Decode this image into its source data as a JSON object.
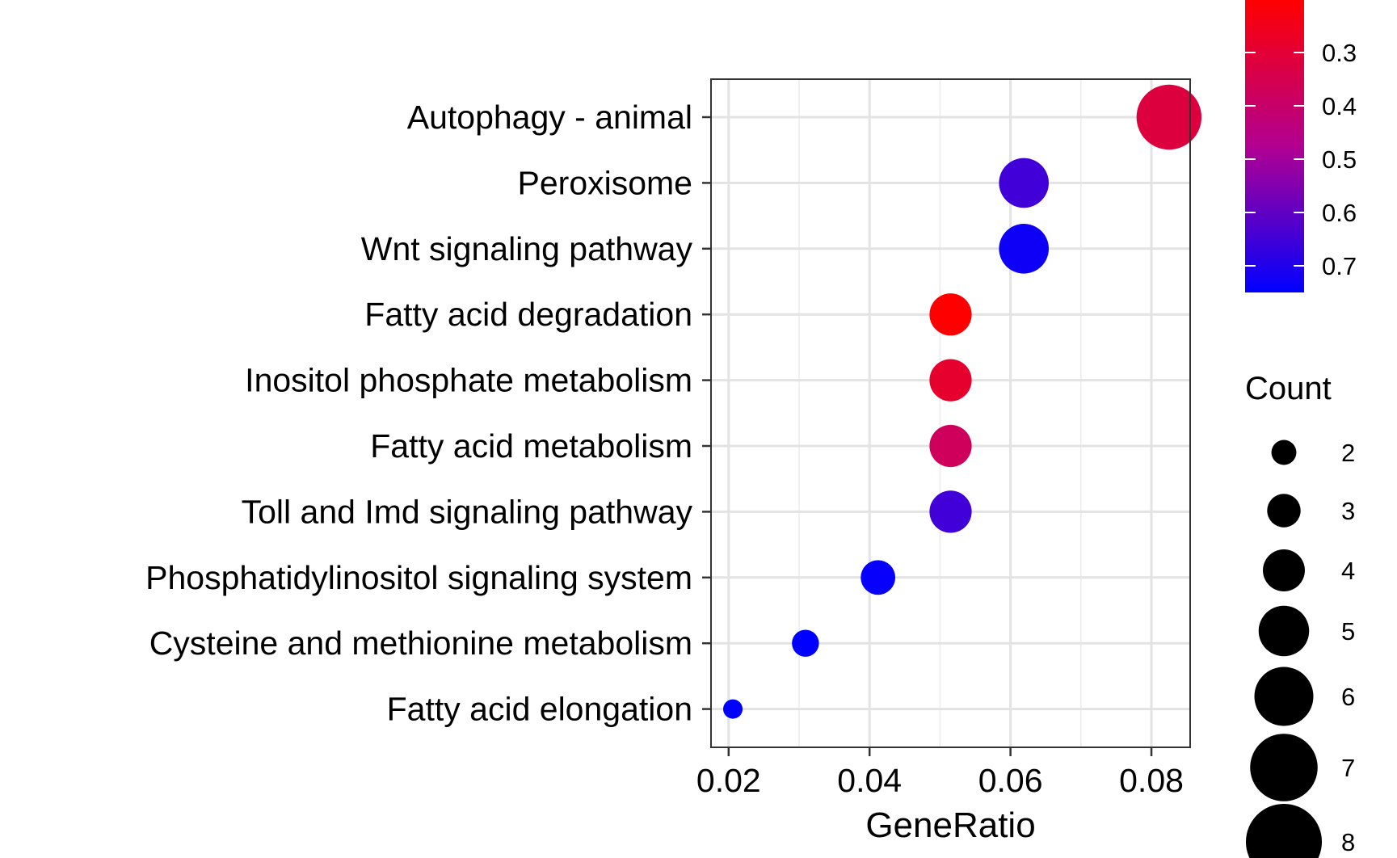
{
  "chart_data": {
    "type": "scatter",
    "xlabel": "GeneRatio",
    "ylabel": "",
    "xlim": [
      0.0175,
      0.0855
    ],
    "xticks": [
      0.02,
      0.04,
      0.06,
      0.08
    ],
    "xtick_labels": [
      "0.02",
      "0.04",
      "0.06",
      "0.08"
    ],
    "grid": true,
    "categories": [
      "Autophagy - animal",
      "Peroxisome",
      "Wnt signaling pathway",
      "Fatty acid degradation",
      "Inositol phosphate metabolism",
      "Fatty acid metabolism",
      "Toll and Imd signaling pathway",
      "Phosphatidylinositol signaling system",
      "Cysteine and methionine metabolism",
      "Fatty acid elongation"
    ],
    "points": [
      {
        "category": "Autophagy - animal",
        "x": 0.0825,
        "count": 8,
        "color_value": 0.36
      },
      {
        "category": "Peroxisome",
        "x": 0.0619,
        "count": 6,
        "color_value": 0.66
      },
      {
        "category": "Wnt signaling pathway",
        "x": 0.0619,
        "count": 6,
        "color_value": 0.73
      },
      {
        "category": "Fatty acid degradation",
        "x": 0.0515,
        "count": 5,
        "color_value": 0.25
      },
      {
        "category": "Inositol phosphate metabolism",
        "x": 0.0515,
        "count": 5,
        "color_value": 0.33
      },
      {
        "category": "Fatty acid metabolism",
        "x": 0.0515,
        "count": 5,
        "color_value": 0.41
      },
      {
        "category": "Toll and Imd signaling pathway",
        "x": 0.0515,
        "count": 5,
        "color_value": 0.66
      },
      {
        "category": "Phosphatidylinositol signaling system",
        "x": 0.0412,
        "count": 4,
        "color_value": 0.74
      },
      {
        "category": "Cysteine and methionine metabolism",
        "x": 0.0309,
        "count": 3,
        "color_value": 0.75
      },
      {
        "category": "Fatty acid elongation",
        "x": 0.0206,
        "count": 2,
        "color_value": 0.75
      }
    ],
    "color_legend": {
      "title": "",
      "ticks": [
        0.3,
        0.4,
        0.5,
        0.6,
        0.7
      ],
      "tick_labels": [
        "0.3",
        "0.4",
        "0.5",
        "0.6",
        "0.7"
      ],
      "range": [
        0.25,
        0.75
      ],
      "low_color": "#ff0000",
      "high_color": "#0000ff"
    },
    "size_legend": {
      "title": "Count",
      "values": [
        2,
        3,
        4,
        5,
        6,
        7,
        8
      ],
      "labels": [
        "2",
        "3",
        "4",
        "5",
        "6",
        "7",
        "8"
      ]
    }
  }
}
